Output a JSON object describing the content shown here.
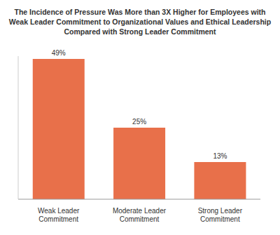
{
  "chart_data": {
    "type": "bar",
    "title": "The Incidence of Pressure Was More than 3X Higher for Employees with Weak Leader Commitment to Organizational Values and Ethical Leadership Compared with Strong Leader Commitment",
    "categories": [
      "Weak Leader Commitment",
      "Moderate Leader Commitment",
      "Strong Leader Commitment"
    ],
    "values": [
      49,
      25,
      13
    ],
    "value_labels": [
      "49%",
      "25%",
      "13%"
    ],
    "data_labels": true,
    "color": "#e8704a",
    "ylim": [
      0,
      50
    ],
    "grid": false,
    "tick_labels": "x"
  }
}
